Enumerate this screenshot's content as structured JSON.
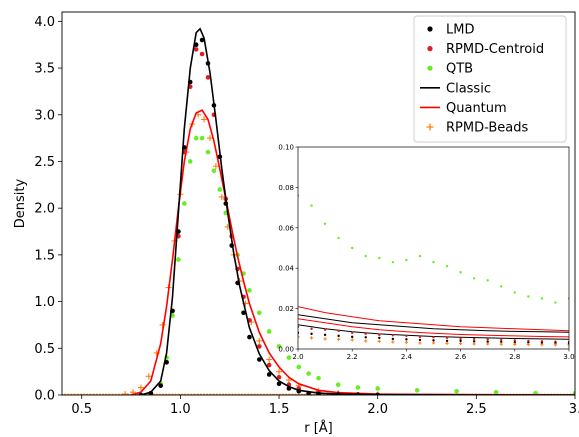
{
  "chart_data": {
    "type": "scatter",
    "xlabel": "r [Å]",
    "ylabel": "Density",
    "xlim": [
      0.4,
      3.0
    ],
    "ylim": [
      0.0,
      4.1
    ],
    "xticks": [
      0.5,
      1.0,
      1.5,
      2.0,
      2.5,
      3.0
    ],
    "xtick_labels": [
      "0.5",
      "1.0",
      "1.5",
      "2.0",
      "2.5",
      "3."
    ],
    "yticks": [
      0.0,
      0.5,
      1.0,
      1.5,
      2.0,
      2.5,
      3.0,
      3.5,
      4.0
    ],
    "ytick_labels": [
      "0.0",
      "0.5",
      "1.0",
      "1.5",
      "2.0",
      "2.5",
      "3.0",
      "3.5",
      "4.0"
    ],
    "grid": false,
    "legend_position": "top-right",
    "series": [
      {
        "name": "LMD",
        "style": "dots",
        "color": "#000000",
        "x": [
          0.8,
          0.85,
          0.9,
          0.93,
          0.96,
          0.99,
          1.02,
          1.05,
          1.08,
          1.11,
          1.14,
          1.17,
          1.2,
          1.23,
          1.26,
          1.29,
          1.32,
          1.35,
          1.4,
          1.45,
          1.5,
          1.55,
          1.6,
          1.65,
          1.7,
          1.8,
          1.9,
          2.0
        ],
        "y": [
          0.0,
          0.02,
          0.1,
          0.35,
          0.9,
          1.75,
          2.65,
          3.35,
          3.75,
          3.8,
          3.55,
          3.1,
          2.55,
          2.05,
          1.6,
          1.2,
          0.88,
          0.62,
          0.38,
          0.22,
          0.12,
          0.07,
          0.04,
          0.02,
          0.01,
          0.005,
          0.002,
          0.0
        ]
      },
      {
        "name": "RPMD-Centroid",
        "style": "dots",
        "color": "#e41a1c",
        "x": [
          0.8,
          0.85,
          0.9,
          0.93,
          0.96,
          0.99,
          1.02,
          1.05,
          1.08,
          1.11,
          1.14,
          1.17,
          1.2,
          1.23,
          1.26,
          1.29,
          1.32,
          1.35,
          1.4,
          1.45,
          1.5,
          1.55,
          1.6,
          1.7,
          1.8,
          1.9,
          2.0
        ],
        "y": [
          0.0,
          0.02,
          0.1,
          0.35,
          0.9,
          1.7,
          2.6,
          3.3,
          3.7,
          3.65,
          3.4,
          3.0,
          2.55,
          2.1,
          1.7,
          1.35,
          1.05,
          0.8,
          0.52,
          0.32,
          0.19,
          0.11,
          0.07,
          0.03,
          0.015,
          0.008,
          0.004
        ]
      },
      {
        "name": "QTB",
        "style": "dots",
        "color": "#66ee22",
        "x": [
          0.85,
          0.9,
          0.93,
          0.96,
          0.99,
          1.02,
          1.05,
          1.08,
          1.11,
          1.14,
          1.17,
          1.2,
          1.23,
          1.26,
          1.29,
          1.32,
          1.35,
          1.4,
          1.45,
          1.5,
          1.55,
          1.6,
          1.65,
          1.7,
          1.8,
          1.9,
          2.0,
          2.2,
          2.4,
          2.6,
          2.8,
          3.0
        ],
        "y": [
          0.02,
          0.12,
          0.4,
          0.85,
          1.45,
          2.05,
          2.5,
          2.75,
          2.75,
          2.6,
          2.4,
          2.2,
          1.95,
          1.7,
          1.5,
          1.3,
          1.12,
          0.88,
          0.68,
          0.52,
          0.4,
          0.3,
          0.23,
          0.18,
          0.11,
          0.08,
          0.07,
          0.05,
          0.04,
          0.03,
          0.02,
          0.02
        ]
      },
      {
        "name": "Classic",
        "style": "line",
        "color": "#000000",
        "x": [
          0.8,
          0.85,
          0.9,
          0.93,
          0.96,
          0.99,
          1.02,
          1.05,
          1.08,
          1.1,
          1.12,
          1.15,
          1.18,
          1.21,
          1.24,
          1.27,
          1.3,
          1.35,
          1.4,
          1.45,
          1.5,
          1.55,
          1.6,
          1.7,
          1.8,
          2.0,
          2.5,
          3.0
        ],
        "y": [
          0.0,
          0.03,
          0.15,
          0.45,
          1.05,
          1.95,
          2.85,
          3.5,
          3.88,
          3.92,
          3.82,
          3.45,
          2.95,
          2.42,
          1.95,
          1.52,
          1.17,
          0.72,
          0.44,
          0.26,
          0.15,
          0.09,
          0.05,
          0.02,
          0.01,
          0.003,
          0.0,
          0.0
        ]
      },
      {
        "name": "Quantum",
        "style": "line",
        "color": "#ff0000",
        "x": [
          0.75,
          0.8,
          0.85,
          0.9,
          0.93,
          0.96,
          0.99,
          1.02,
          1.05,
          1.08,
          1.11,
          1.14,
          1.17,
          1.2,
          1.23,
          1.26,
          1.29,
          1.32,
          1.35,
          1.4,
          1.45,
          1.5,
          1.55,
          1.6,
          1.7,
          1.8,
          2.0,
          2.5,
          3.0
        ],
        "y": [
          0.0,
          0.03,
          0.15,
          0.55,
          0.95,
          1.45,
          2.0,
          2.5,
          2.85,
          3.02,
          3.05,
          2.95,
          2.72,
          2.42,
          2.1,
          1.78,
          1.48,
          1.22,
          0.98,
          0.67,
          0.45,
          0.3,
          0.19,
          0.12,
          0.05,
          0.025,
          0.01,
          0.003,
          0.0
        ]
      },
      {
        "name": "RPMD-Beads",
        "style": "plus",
        "color": "#ff7f0e",
        "x": [
          0.72,
          0.76,
          0.8,
          0.84,
          0.88,
          0.91,
          0.94,
          0.97,
          1.0,
          1.03,
          1.06,
          1.09,
          1.12,
          1.15,
          1.18,
          1.21,
          1.24,
          1.27,
          1.3,
          1.33,
          1.36,
          1.4,
          1.45,
          1.5,
          1.55,
          1.6,
          1.7,
          1.8,
          2.0
        ],
        "y": [
          0.01,
          0.03,
          0.08,
          0.2,
          0.45,
          0.75,
          1.15,
          1.65,
          2.15,
          2.6,
          2.9,
          3.0,
          2.95,
          2.75,
          2.45,
          2.12,
          1.8,
          1.5,
          1.22,
          0.98,
          0.78,
          0.58,
          0.38,
          0.25,
          0.16,
          0.1,
          0.04,
          0.02,
          0.005
        ]
      }
    ],
    "inset": {
      "xlim": [
        2.0,
        3.0
      ],
      "ylim": [
        0.0,
        0.1
      ],
      "xticks": [
        2.0,
        2.2,
        2.4,
        2.6,
        2.8,
        3.0
      ],
      "xtick_labels": [
        "2.0",
        "2.2",
        "2.4",
        "2.6",
        "2.8",
        "3.0"
      ],
      "yticks": [
        0.0,
        0.02,
        0.04,
        0.06,
        0.08,
        0.1
      ],
      "ytick_labels": [
        "0.00",
        "0.02",
        "0.04",
        "0.06",
        "0.08",
        "0.10"
      ],
      "series": [
        {
          "name": "QTB",
          "style": "dots",
          "color": "#66ee22",
          "x": [
            2.0,
            2.05,
            2.1,
            2.15,
            2.2,
            2.25,
            2.3,
            2.35,
            2.4,
            2.45,
            2.5,
            2.55,
            2.6,
            2.65,
            2.7,
            2.75,
            2.8,
            2.85,
            2.9,
            2.95,
            3.0
          ],
          "y": [
            0.076,
            0.071,
            0.062,
            0.055,
            0.05,
            0.046,
            0.045,
            0.043,
            0.044,
            0.046,
            0.043,
            0.041,
            0.038,
            0.035,
            0.034,
            0.031,
            0.028,
            0.026,
            0.025,
            0.023,
            0.025
          ]
        },
        {
          "name": "Quantum",
          "style": "line",
          "color": "#ff0000",
          "x": [
            2.0,
            2.1,
            2.2,
            2.3,
            2.4,
            2.5,
            2.6,
            2.7,
            2.8,
            2.9,
            3.0
          ],
          "y": [
            0.021,
            0.018,
            0.016,
            0.014,
            0.013,
            0.012,
            0.011,
            0.0105,
            0.01,
            0.0095,
            0.009
          ]
        },
        {
          "name": "Quantum",
          "style": "line",
          "color": "#ff0000",
          "x": [
            2.0,
            2.1,
            2.2,
            2.3,
            2.4,
            2.5,
            2.6,
            2.7,
            2.8,
            2.9,
            3.0
          ],
          "y": [
            0.015,
            0.013,
            0.011,
            0.0095,
            0.0085,
            0.0078,
            0.0072,
            0.0068,
            0.0065,
            0.0062,
            0.006
          ]
        },
        {
          "name": "Classic",
          "style": "line",
          "color": "#000000",
          "x": [
            2.0,
            2.1,
            2.2,
            2.3,
            2.4,
            2.5,
            2.6,
            2.7,
            2.8,
            2.9,
            3.0
          ],
          "y": [
            0.017,
            0.015,
            0.013,
            0.012,
            0.011,
            0.01,
            0.0095,
            0.009,
            0.0087,
            0.0085,
            0.0083
          ]
        },
        {
          "name": "Classic",
          "style": "line",
          "color": "#000000",
          "x": [
            2.0,
            2.1,
            2.2,
            2.3,
            2.4,
            2.5,
            2.6,
            2.7,
            2.8,
            2.9,
            3.0
          ],
          "y": [
            0.012,
            0.01,
            0.0085,
            0.0075,
            0.0068,
            0.0062,
            0.0058,
            0.0055,
            0.0052,
            0.005,
            0.0048
          ]
        },
        {
          "name": "RPMD-Centroid",
          "style": "dots",
          "color": "#e41a1c",
          "x": [
            2.0,
            2.05,
            2.1,
            2.15,
            2.2,
            2.25,
            2.3,
            2.35,
            2.4,
            2.45,
            2.5,
            2.55,
            2.6,
            2.65,
            2.7,
            2.75,
            2.8,
            2.85,
            2.9,
            2.95,
            3.0
          ],
          "y": [
            0.011,
            0.01,
            0.0095,
            0.009,
            0.008,
            0.0075,
            0.007,
            0.0068,
            0.0065,
            0.006,
            0.0058,
            0.0055,
            0.005,
            0.005,
            0.0048,
            0.0045,
            0.0043,
            0.004,
            0.0038,
            0.0036,
            0.0035
          ]
        },
        {
          "name": "LMD",
          "style": "dots",
          "color": "#000000",
          "x": [
            2.0,
            2.05,
            2.1,
            2.15,
            2.2,
            2.25,
            2.3,
            2.35,
            2.4,
            2.45,
            2.5,
            2.55,
            2.6,
            2.65,
            2.7,
            2.75,
            2.8,
            2.85,
            2.9,
            2.95,
            3.0
          ],
          "y": [
            0.008,
            0.0075,
            0.007,
            0.0065,
            0.006,
            0.0058,
            0.0055,
            0.005,
            0.0048,
            0.0045,
            0.0043,
            0.004,
            0.004,
            0.0038,
            0.0036,
            0.0035,
            0.0033,
            0.0032,
            0.003,
            0.003,
            0.0028
          ]
        },
        {
          "name": "RPMD-Beads",
          "style": "plus",
          "color": "#ff7f0e",
          "x": [
            2.0,
            2.05,
            2.1,
            2.15,
            2.2,
            2.25,
            2.3,
            2.35,
            2.4,
            2.45,
            2.5,
            2.55,
            2.6,
            2.65,
            2.7,
            2.75,
            2.8,
            2.85,
            2.9,
            2.95,
            3.0
          ],
          "y": [
            0.006,
            0.0055,
            0.005,
            0.0048,
            0.0045,
            0.004,
            0.0038,
            0.0035,
            0.0033,
            0.003,
            0.003,
            0.0028,
            0.0027,
            0.0025,
            0.0025,
            0.0024,
            0.0023,
            0.0022,
            0.0021,
            0.002,
            0.002
          ]
        }
      ]
    }
  }
}
